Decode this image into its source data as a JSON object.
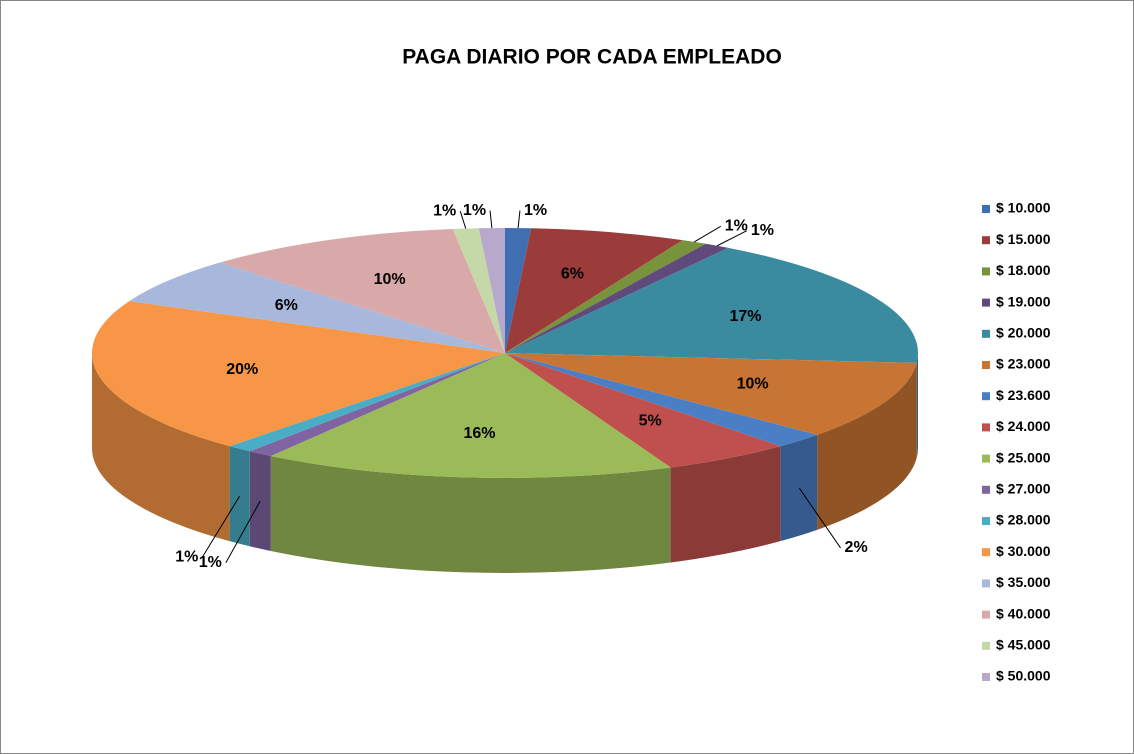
{
  "chart_data": {
    "type": "pie3d",
    "title": "PAGA DIARIO POR CADA EMPLEADO",
    "categories": [
      "$ 10.000",
      "$ 15.000",
      "$ 18.000",
      "$ 19.000",
      "$ 20.000",
      "$ 23.000",
      "$ 23.600",
      "$ 24.000",
      "$ 25.000",
      "$ 27.000",
      "$ 28.000",
      "$ 30.000",
      "$ 35.000",
      "$ 40.000",
      "$ 45.000",
      "$ 50.000"
    ],
    "values": [
      1,
      6,
      1,
      1,
      17,
      10,
      2,
      5,
      16,
      1,
      1,
      20,
      6,
      10,
      1,
      1
    ],
    "value_labels": [
      "1%",
      "6%",
      "1%",
      "1%",
      "17%",
      "10%",
      "2%",
      "5%",
      "16%",
      "1%",
      "1%",
      "20%",
      "6%",
      "10%",
      "1%",
      "1%"
    ],
    "colors": [
      "#3f6fb0",
      "#9b3c3a",
      "#77933c",
      "#604a7b",
      "#3a8ba0",
      "#c87533",
      "#4a7fc5",
      "#c0504d",
      "#9bbb59",
      "#8064a2",
      "#4bacc6",
      "#f79646",
      "#a8b8dc",
      "#d9a8a8",
      "#c5d9a8",
      "#b8a8cc"
    ],
    "legend": "right"
  }
}
